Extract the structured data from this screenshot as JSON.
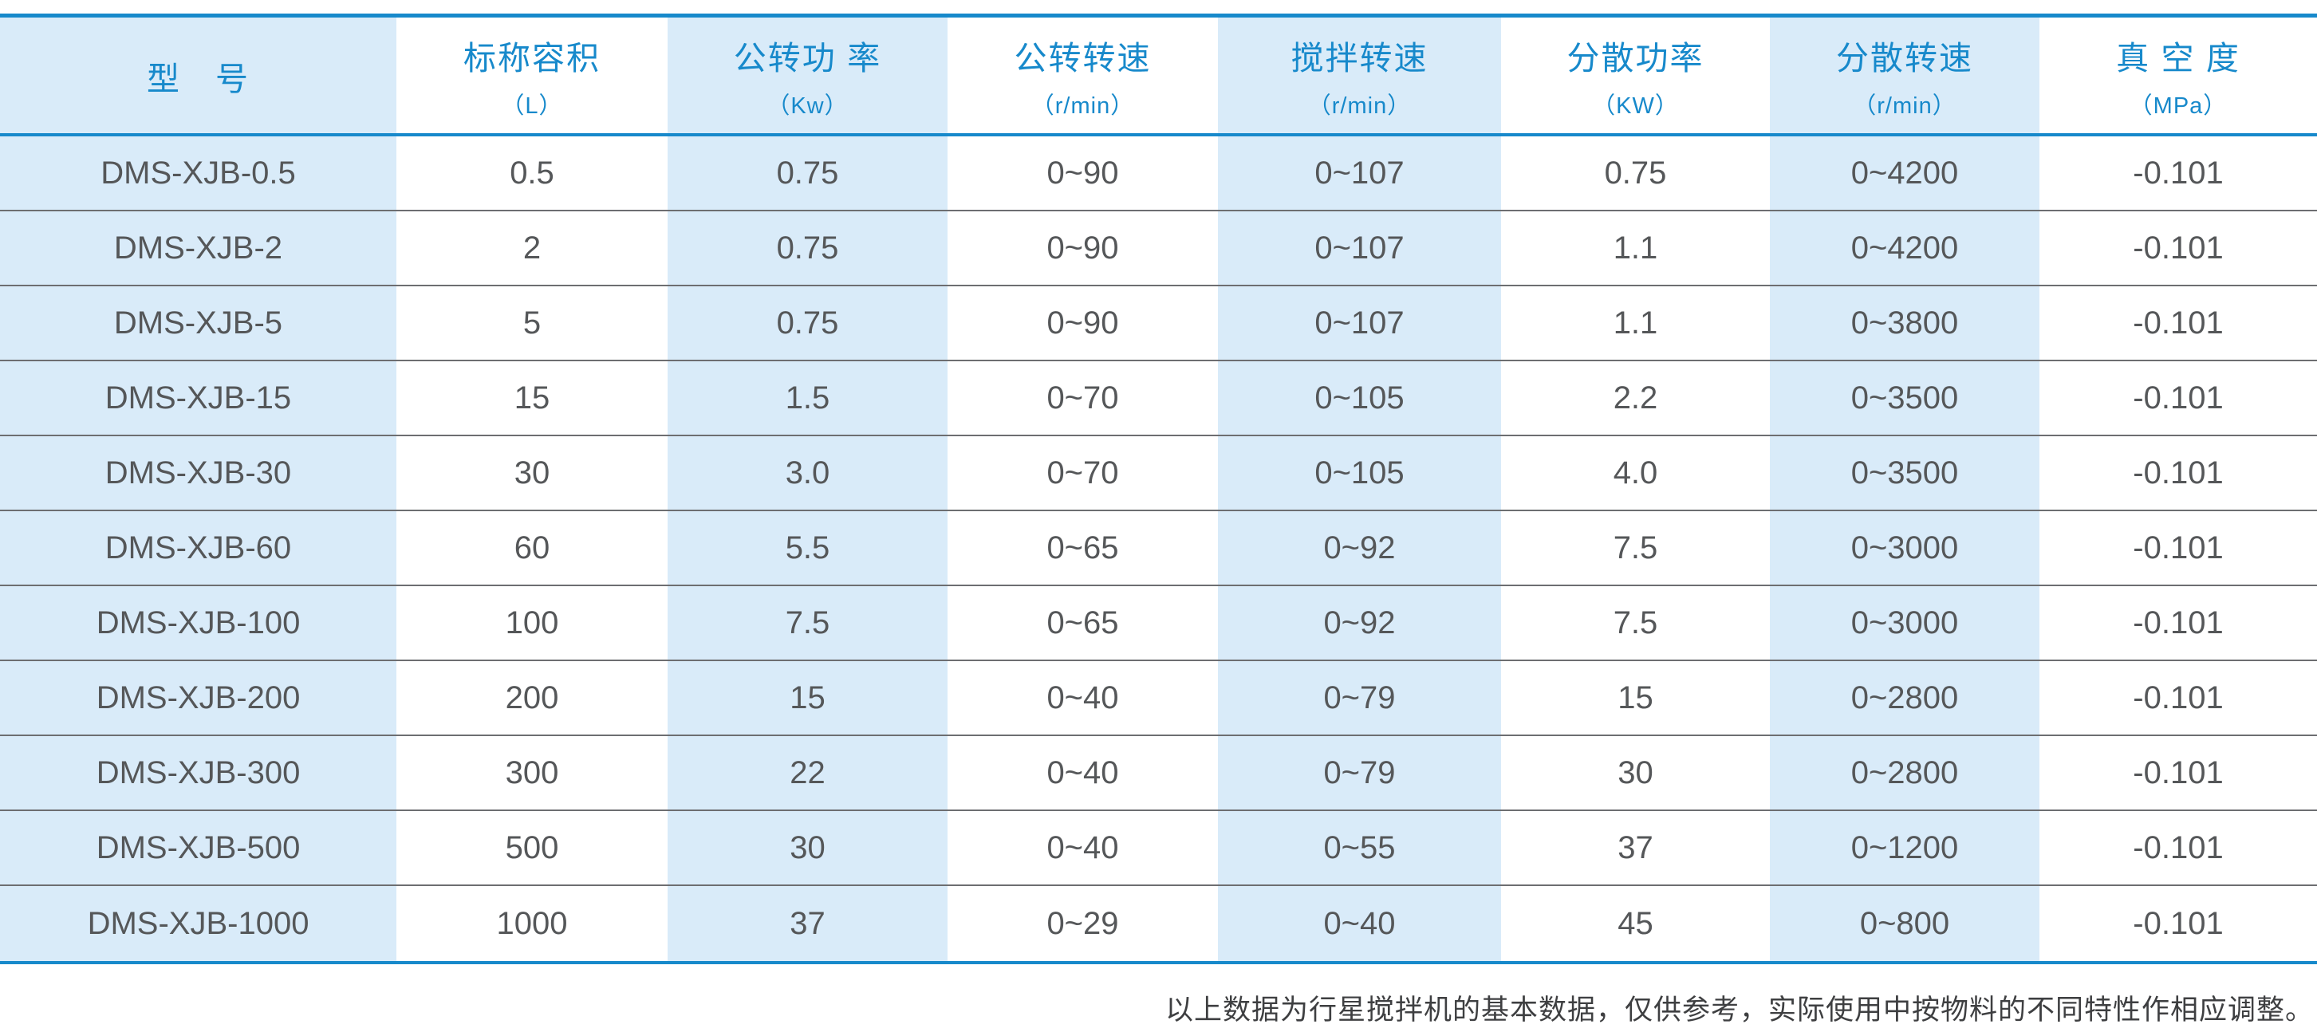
{
  "colors": {
    "accent_blue": "#1789cb",
    "shaded_column_bg": "#d9ebf9",
    "body_text": "#555759",
    "row_divider": "#6d6e71"
  },
  "table": {
    "columns": [
      {
        "label": "型　号",
        "unit": ""
      },
      {
        "label": "标称容积",
        "unit": "（L）"
      },
      {
        "label": "公转功 率",
        "unit": "（Kw）"
      },
      {
        "label": "公转转速",
        "unit": "（r/min）"
      },
      {
        "label": "搅拌转速",
        "unit": "（r/min）"
      },
      {
        "label": "分散功率",
        "unit": "（KW）"
      },
      {
        "label": "分散转速",
        "unit": "（r/min）"
      },
      {
        "label": "真 空 度",
        "unit": "（MPa）"
      }
    ],
    "rows": [
      [
        "DMS-XJB-0.5",
        "0.5",
        "0.75",
        "0~90",
        "0~107",
        "0.75",
        "0~4200",
        "-0.101"
      ],
      [
        "DMS-XJB-2",
        "2",
        "0.75",
        "0~90",
        "0~107",
        "1.1",
        "0~4200",
        "-0.101"
      ],
      [
        "DMS-XJB-5",
        "5",
        "0.75",
        "0~90",
        "0~107",
        "1.1",
        "0~3800",
        "-0.101"
      ],
      [
        "DMS-XJB-15",
        "15",
        "1.5",
        "0~70",
        "0~105",
        "2.2",
        "0~3500",
        "-0.101"
      ],
      [
        "DMS-XJB-30",
        "30",
        "3.0",
        "0~70",
        "0~105",
        "4.0",
        "0~3500",
        "-0.101"
      ],
      [
        "DMS-XJB-60",
        "60",
        "5.5",
        "0~65",
        "0~92",
        "7.5",
        "0~3000",
        "-0.101"
      ],
      [
        "DMS-XJB-100",
        "100",
        "7.5",
        "0~65",
        "0~92",
        "7.5",
        "0~3000",
        "-0.101"
      ],
      [
        "DMS-XJB-200",
        "200",
        "15",
        "0~40",
        "0~79",
        "15",
        "0~2800",
        "-0.101"
      ],
      [
        "DMS-XJB-300",
        "300",
        "22",
        "0~40",
        "0~79",
        "30",
        "0~2800",
        "-0.101"
      ],
      [
        "DMS-XJB-500",
        "500",
        "30",
        "0~40",
        "0~55",
        "37",
        "0~1200",
        "-0.101"
      ],
      [
        "DMS-XJB-1000",
        "1000",
        "37",
        "0~29",
        "0~40",
        "45",
        "0~800",
        "-0.101"
      ]
    ]
  },
  "footer": {
    "note": "以上数据为行星搅拌机的基本数据，仅供参考，实际使用中按物料的不同特性作相应调整。"
  }
}
